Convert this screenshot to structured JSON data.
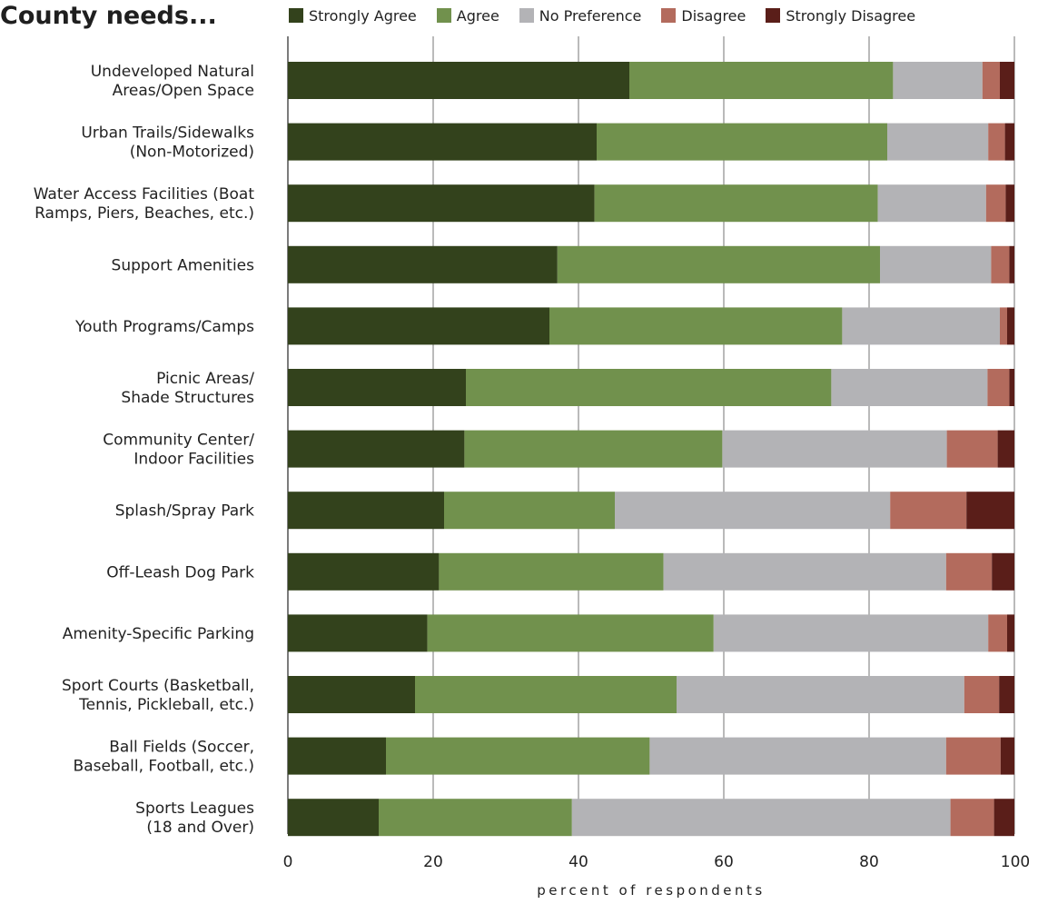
{
  "chart_data": {
    "type": "bar",
    "orientation": "horizontal",
    "stacked": true,
    "title": "County needs...",
    "xlabel": "percent of respondents",
    "ylabel": "",
    "xlim": [
      0,
      100
    ],
    "xticks": [
      0,
      20,
      40,
      60,
      80,
      100
    ],
    "grid": "vertical",
    "legend_position": "top",
    "categories": [
      "Undeveloped Natural\nAreas/Open Space",
      "Urban Trails/Sidewalks\n(Non-Motorized)",
      "Water Access Facilities (Boat\nRamps, Piers, Beaches, etc.)",
      "Support Amenities",
      "Youth Programs/Camps",
      "Picnic Areas/\nShade Structures",
      "Community Center/\nIndoor Facilities",
      "Splash/Spray Park",
      "Off-Leash Dog Park",
      "Amenity-Specific Parking",
      "Sport Courts (Basketball,\nTennis, Pickleball, etc.)",
      "Ball Fields (Soccer,\nBaseball, Football, etc.)",
      "Sports Leagues\n(18 and Over)"
    ],
    "series": [
      {
        "name": "Strongly Agree",
        "color": "#33421c",
        "values": [
          47.0,
          42.5,
          42.2,
          37.1,
          36.0,
          24.5,
          24.3,
          21.5,
          20.8,
          19.2,
          17.5,
          13.5,
          12.5
        ]
      },
      {
        "name": "Agree",
        "color": "#71914d",
        "values": [
          36.3,
          40.0,
          39.0,
          44.4,
          40.3,
          50.3,
          35.5,
          23.5,
          30.9,
          39.4,
          36.0,
          36.3,
          26.6
        ]
      },
      {
        "name": "No Preference",
        "color": "#b3b3b6",
        "values": [
          12.3,
          13.9,
          14.9,
          15.3,
          21.7,
          21.5,
          30.9,
          37.9,
          38.9,
          37.8,
          39.6,
          40.8,
          52.1
        ]
      },
      {
        "name": "Disagree",
        "color": "#b36b5d",
        "values": [
          2.4,
          2.3,
          2.7,
          2.5,
          1.0,
          3.0,
          7.0,
          10.5,
          6.3,
          2.6,
          4.8,
          7.5,
          6.0
        ]
      },
      {
        "name": "Strongly Disagree",
        "color": "#5a1e19",
        "values": [
          2.0,
          1.3,
          1.2,
          0.7,
          1.0,
          0.7,
          2.3,
          6.6,
          3.1,
          1.0,
          2.1,
          1.9,
          2.8
        ]
      }
    ]
  }
}
